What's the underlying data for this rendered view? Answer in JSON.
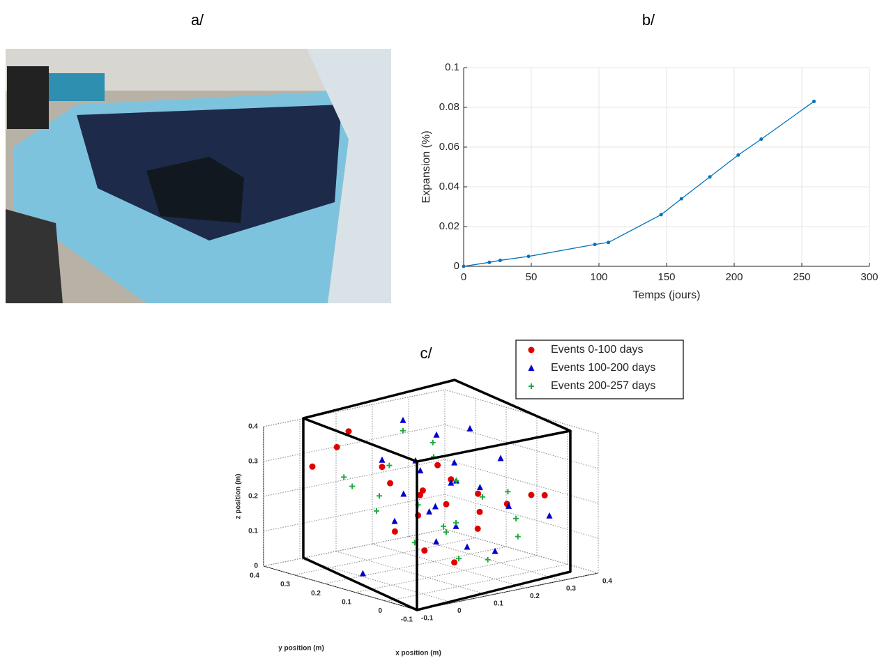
{
  "panel_labels": [
    "a/",
    "b/",
    "c/"
  ],
  "chart_data": [
    {
      "type": "line",
      "xlabel": "Temps (jours)",
      "ylabel": "Expansion (%)",
      "x": [
        0,
        19,
        27,
        48,
        97,
        107,
        146,
        161,
        182,
        203,
        220,
        259
      ],
      "values": [
        0,
        0.002,
        0.003,
        0.005,
        0.011,
        0.012,
        0.026,
        0.034,
        0.045,
        0.056,
        0.064,
        0.083
      ],
      "color": "#0072bd",
      "xlim": [
        0,
        300
      ],
      "ylim": [
        0,
        0.1
      ],
      "xticks": [
        0,
        50,
        100,
        150,
        200,
        250,
        300
      ],
      "yticks": [
        0,
        0.02,
        0.04,
        0.06,
        0.08,
        0.1
      ],
      "grid": true
    },
    {
      "type": "scatter3d",
      "xlabel": "x position (m)",
      "ylabel": "y position (m)",
      "zlabel": "z position (m)",
      "xlim": [
        -0.1,
        0.4
      ],
      "ylim": [
        -0.1,
        0.4
      ],
      "zlim": [
        0,
        0.4
      ],
      "xticks": [
        -0.1,
        0,
        0.1,
        0.2,
        0.3,
        0.4
      ],
      "yticks": [
        -0.1,
        0,
        0.1,
        0.2,
        0.3,
        0.4
      ],
      "zticks": [
        0,
        0.1,
        0.2,
        0.3,
        0.4
      ],
      "grid": true,
      "series": [
        {
          "name": "Events 0-100 days",
          "color": "#e00000",
          "marker": "circle",
          "x": [
            0.05,
            0.1,
            0.12,
            0.15,
            0.08,
            0.2,
            0.18,
            0.25,
            0.3,
            0.32,
            0.14,
            0.11,
            0.09,
            0.16,
            0.22,
            0.06,
            0.13,
            0.28,
            -0.05,
            0.17
          ],
          "y": [
            0.3,
            0.25,
            0.15,
            0.1,
            0.2,
            0.05,
            0.12,
            0.02,
            0,
            -0.02,
            0.18,
            0.22,
            0.1,
            0.14,
            0.08,
            0.35,
            0.05,
            0.15,
            0.3,
            0.2
          ],
          "z": [
            0.38,
            0.28,
            0.22,
            0.2,
            0.25,
            0.18,
            0.26,
            0.2,
            0.22,
            0.22,
            0.15,
            0.1,
            0.08,
            0.3,
            0.12,
            0.32,
            0.05,
            0.19,
            0.3,
            0.21
          ]
        },
        {
          "name": "Events 100-200 days",
          "color": "#0000cc",
          "marker": "triangle",
          "x": [
            0.2,
            0.25,
            0.15,
            0.1,
            0.12,
            0.18,
            0.22,
            0.28,
            0.3,
            0.05,
            0.08,
            0.14,
            0.16,
            0.2,
            0.24,
            0.1,
            0.3,
            0.35,
            -0.08,
            0.12,
            0.18,
            0.26
          ],
          "y": [
            0.3,
            0.25,
            0.2,
            0.18,
            0.1,
            0.12,
            0.15,
            0.05,
            0.1,
            0.15,
            0.05,
            0.02,
            0.08,
            0.0,
            0.18,
            0.25,
            0.2,
            0.0,
            0.1,
            0.12,
            0.22,
            0.12
          ],
          "z": [
            0.38,
            0.34,
            0.3,
            0.22,
            0.2,
            0.25,
            0.24,
            0.18,
            0.3,
            0.16,
            0.12,
            0.1,
            0.14,
            0.08,
            0.28,
            0.3,
            0.36,
            0.15,
            0.05,
            0.18,
            0.26,
            0.22
          ]
        },
        {
          "name": "Events 200-257 days",
          "color": "#22aa44",
          "marker": "plus",
          "x": [
            0.0,
            0.05,
            0.1,
            0.15,
            0.2,
            0.25,
            0.3,
            0.12,
            0.08,
            0.18,
            0.22,
            0.28,
            0.14,
            0.06,
            0.24,
            0.16,
            0.1,
            0.32,
            0.02,
            0.2
          ],
          "y": [
            0.15,
            0.2,
            0.05,
            0.1,
            0.2,
            0.1,
            0.05,
            0.25,
            0.12,
            0.0,
            0.15,
            0.02,
            0.18,
            0.3,
            0.25,
            0.08,
            0.0,
            0.1,
            0.28,
            0.3
          ],
          "z": [
            0.2,
            0.22,
            0.16,
            0.12,
            0.3,
            0.2,
            0.14,
            0.28,
            0.1,
            0.06,
            0.24,
            0.1,
            0.18,
            0.22,
            0.32,
            0.15,
            0.08,
            0.2,
            0.26,
            0.35
          ]
        }
      ]
    }
  ]
}
